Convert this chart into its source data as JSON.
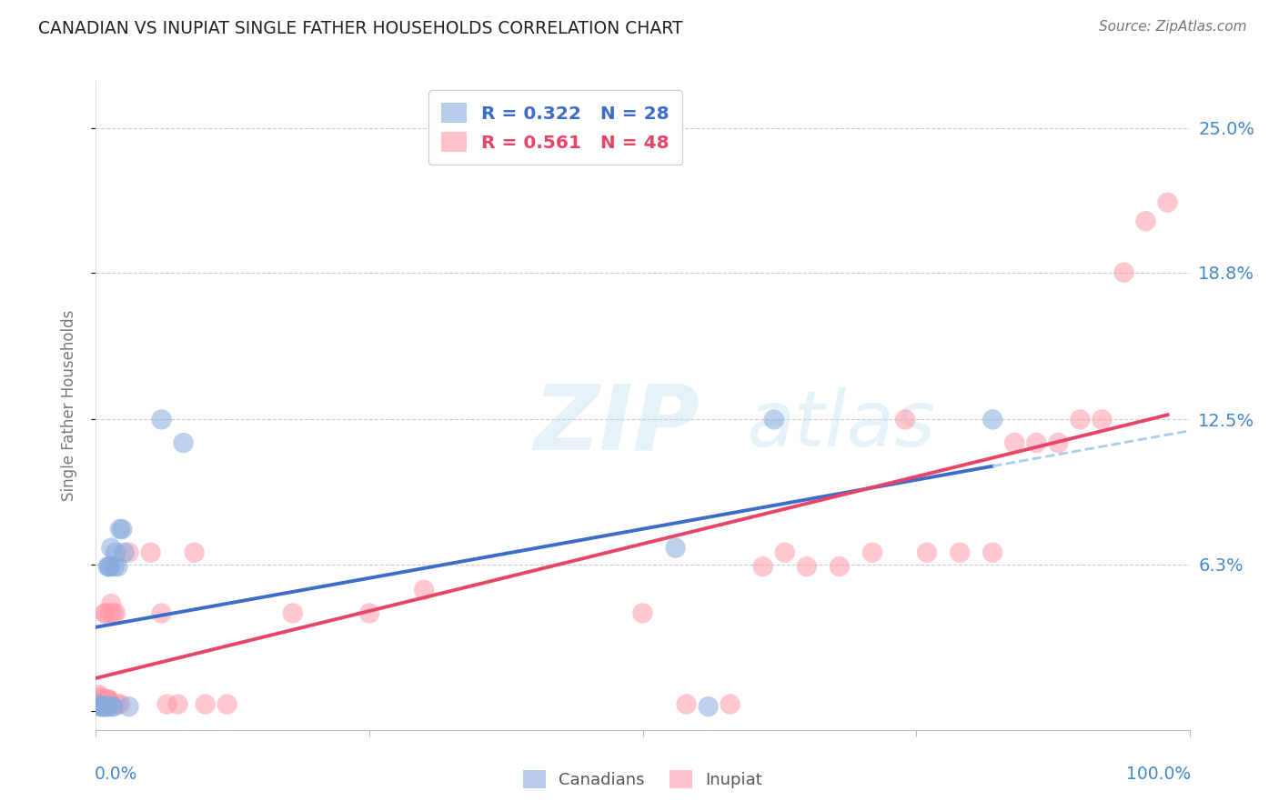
{
  "title": "CANADIAN VS INUPIAT SINGLE FATHER HOUSEHOLDS CORRELATION CHART",
  "source": "Source: ZipAtlas.com",
  "ylabel": "Single Father Households",
  "xlim": [
    0,
    1.0
  ],
  "ylim": [
    -0.008,
    0.27
  ],
  "ytick_values": [
    0.0,
    0.063,
    0.125,
    0.188,
    0.25
  ],
  "ytick_labels": [
    "",
    "6.3%",
    "12.5%",
    "18.8%",
    "25.0%"
  ],
  "canadian_R": "0.322",
  "canadian_N": "28",
  "inupiat_R": "0.561",
  "inupiat_N": "48",
  "canadian_dot_color": "#88AADD",
  "inupiat_dot_color": "#FF99AA",
  "canadian_line_color": "#3A6CC8",
  "inupiat_line_color": "#E84466",
  "dash_color": "#AACCEE",
  "tick_label_color": "#4488CC",
  "canadian_x": [
    0.003,
    0.004,
    0.005,
    0.006,
    0.007,
    0.008,
    0.009,
    0.01,
    0.011,
    0.011,
    0.012,
    0.013,
    0.014,
    0.015,
    0.016,
    0.017,
    0.018,
    0.02,
    0.022,
    0.024,
    0.026,
    0.03,
    0.06,
    0.08,
    0.53,
    0.56,
    0.62,
    0.82
  ],
  "canadian_y": [
    0.003,
    0.002,
    0.002,
    0.002,
    0.002,
    0.002,
    0.002,
    0.002,
    0.002,
    0.062,
    0.062,
    0.062,
    0.07,
    0.002,
    0.002,
    0.062,
    0.068,
    0.062,
    0.078,
    0.078,
    0.068,
    0.002,
    0.125,
    0.115,
    0.07,
    0.002,
    0.125,
    0.125
  ],
  "inupiat_x": [
    0.003,
    0.004,
    0.005,
    0.006,
    0.007,
    0.008,
    0.009,
    0.01,
    0.01,
    0.011,
    0.012,
    0.013,
    0.014,
    0.016,
    0.018,
    0.02,
    0.022,
    0.03,
    0.05,
    0.06,
    0.065,
    0.075,
    0.09,
    0.1,
    0.12,
    0.18,
    0.25,
    0.3,
    0.5,
    0.54,
    0.58,
    0.61,
    0.63,
    0.65,
    0.68,
    0.71,
    0.74,
    0.76,
    0.79,
    0.82,
    0.84,
    0.86,
    0.88,
    0.9,
    0.92,
    0.94,
    0.96,
    0.98
  ],
  "inupiat_y": [
    0.007,
    0.006,
    0.005,
    0.005,
    0.005,
    0.042,
    0.042,
    0.005,
    0.005,
    0.005,
    0.005,
    0.042,
    0.046,
    0.042,
    0.042,
    0.003,
    0.003,
    0.068,
    0.068,
    0.042,
    0.003,
    0.003,
    0.068,
    0.003,
    0.003,
    0.042,
    0.042,
    0.052,
    0.042,
    0.003,
    0.003,
    0.062,
    0.068,
    0.062,
    0.062,
    0.068,
    0.125,
    0.068,
    0.068,
    0.068,
    0.115,
    0.115,
    0.115,
    0.125,
    0.125,
    0.188,
    0.21,
    0.218
  ]
}
